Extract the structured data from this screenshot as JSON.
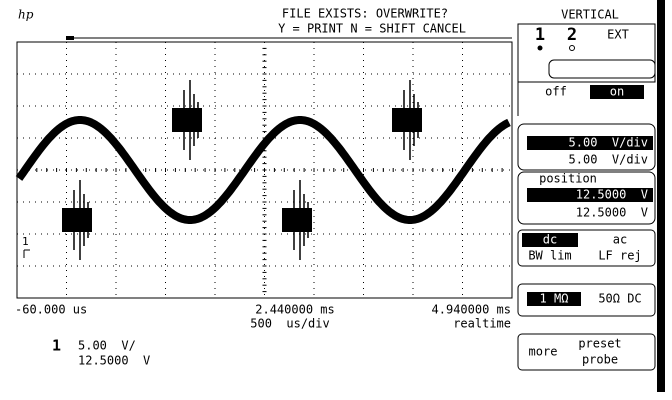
{
  "header": {
    "brand": "hp",
    "message": "FILE EXISTS: OVERWRITE?",
    "prompt": "Y = PRINT N = SHIFT CANCEL"
  },
  "time_axis": {
    "left": "-60.000 us",
    "center": "2.440000 ms",
    "right": "4.940000 ms",
    "scale": "500  us/div",
    "mode": "realtime"
  },
  "channel_status": {
    "channel": "1",
    "scale": "5.00  V/",
    "offset": "12.5000  V"
  },
  "menu": {
    "title": "VERTICAL",
    "channels": [
      "1",
      "2",
      "EXT"
    ],
    "display": [
      "off",
      "on"
    ],
    "volts_div": {
      "selected": "5.00  V/div",
      "value": "5.00  V/div"
    },
    "position": {
      "label": "position",
      "selected": "12.5000  V",
      "value": "12.5000  V"
    },
    "coupling": [
      "dc",
      "ac"
    ],
    "filters": [
      "BW lim",
      "LF rej"
    ],
    "impedance": [
      "1 MΩ",
      "50Ω DC"
    ],
    "more": "more",
    "probe": [
      "preset",
      "probe"
    ]
  }
}
